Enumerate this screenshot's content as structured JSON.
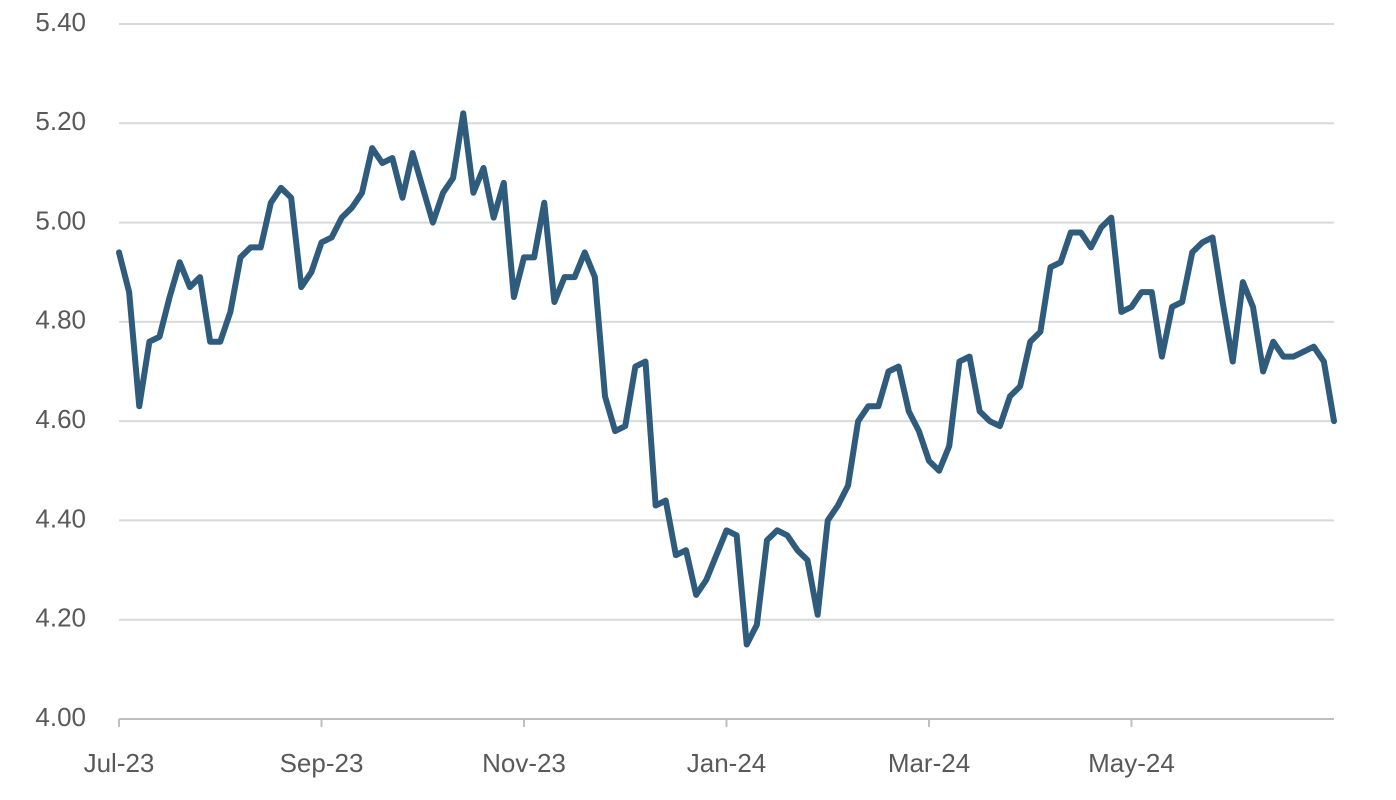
{
  "chart_data": {
    "type": "line",
    "categories": [
      "Jul-23",
      null,
      null,
      null,
      null,
      null,
      null,
      null,
      null,
      null,
      null,
      null,
      null,
      null,
      null,
      null,
      null,
      null,
      null,
      null,
      "Sep-23",
      null,
      null,
      null,
      null,
      null,
      null,
      null,
      null,
      null,
      null,
      null,
      null,
      null,
      null,
      null,
      null,
      null,
      null,
      null,
      "Nov-23",
      null,
      null,
      null,
      null,
      null,
      null,
      null,
      null,
      null,
      null,
      null,
      null,
      null,
      null,
      null,
      null,
      null,
      null,
      null,
      "Jan-24",
      null,
      null,
      null,
      null,
      null,
      null,
      null,
      null,
      null,
      null,
      null,
      null,
      null,
      null,
      null,
      null,
      null,
      null,
      null,
      "Mar-24",
      null,
      null,
      null,
      null,
      null,
      null,
      null,
      null,
      null,
      null,
      null,
      null,
      null,
      null,
      null,
      null,
      null,
      null,
      null,
      "May-24",
      null,
      null,
      null,
      null,
      null,
      null,
      null,
      null,
      null,
      null,
      null,
      null,
      null,
      null,
      null,
      null,
      null,
      null,
      null,
      null
    ],
    "series": [
      {
        "color": "#2f5b7c",
        "values": [
          4.94,
          4.86,
          4.63,
          4.76,
          4.77,
          4.85,
          4.92,
          4.87,
          4.89,
          4.76,
          4.76,
          4.82,
          4.93,
          4.95,
          4.95,
          5.04,
          5.07,
          5.05,
          4.87,
          4.9,
          4.96,
          4.97,
          5.01,
          5.03,
          5.06,
          5.15,
          5.12,
          5.13,
          5.05,
          5.14,
          5.07,
          5.0,
          5.06,
          5.09,
          5.22,
          5.06,
          5.11,
          5.01,
          5.08,
          4.85,
          4.93,
          4.93,
          5.04,
          4.84,
          4.89,
          4.89,
          4.94,
          4.89,
          4.65,
          4.58,
          4.59,
          4.71,
          4.72,
          4.43,
          4.44,
          4.33,
          4.34,
          4.25,
          4.28,
          4.33,
          4.38,
          4.37,
          4.15,
          4.19,
          4.36,
          4.38,
          4.37,
          4.34,
          4.32,
          4.21,
          4.4,
          4.43,
          4.47,
          4.6,
          4.63,
          4.63,
          4.7,
          4.71,
          4.62,
          4.58,
          4.52,
          4.5,
          4.55,
          4.72,
          4.73,
          4.62,
          4.6,
          4.59,
          4.65,
          4.67,
          4.76,
          4.78,
          4.91,
          4.92,
          4.98,
          4.98,
          4.95,
          4.99,
          5.01,
          4.82,
          4.83,
          4.86,
          4.86,
          4.73,
          4.83,
          4.84,
          4.94,
          4.96,
          4.97,
          4.84,
          4.72,
          4.88,
          4.83,
          4.7,
          4.76,
          4.73,
          4.73,
          4.74,
          4.75,
          4.72,
          4.6
        ]
      }
    ],
    "ylim": [
      4.0,
      5.4
    ],
    "yticks": [
      {
        "value": 4.0,
        "label": "4.00"
      },
      {
        "value": 4.2,
        "label": "4.20"
      },
      {
        "value": 4.4,
        "label": "4.40"
      },
      {
        "value": 4.6,
        "label": "4.60"
      },
      {
        "value": 4.8,
        "label": "4.80"
      },
      {
        "value": 5.0,
        "label": "5.00"
      },
      {
        "value": 5.2,
        "label": "5.20"
      },
      {
        "value": 5.4,
        "label": "5.40"
      }
    ],
    "grid": true
  }
}
